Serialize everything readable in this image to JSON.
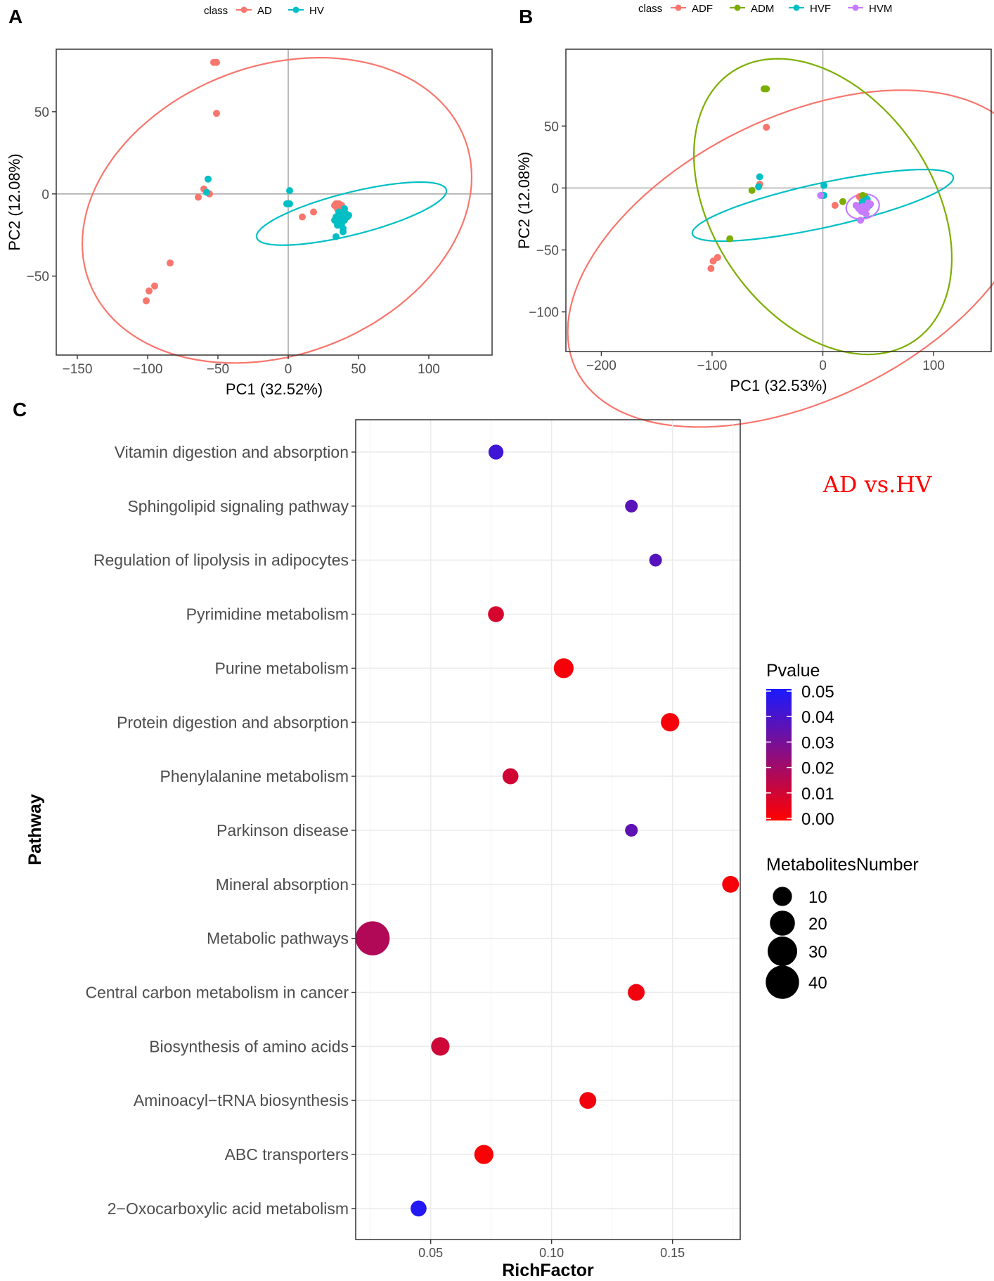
{
  "colors": {
    "AD": "#F8766D",
    "HV": "#00BFC4",
    "ADF": "#F8766D",
    "ADM": "#7CAE00",
    "HVF": "#00BFC4",
    "HVM": "#C77CFF",
    "axis_ref": "#aaaaaa",
    "grid": "#ebebeb",
    "annotation": "#ff0000",
    "p_low": "#ff0000",
    "p_high": "#1a1aff"
  },
  "chart_data": [
    {
      "panel": "A",
      "type": "scatter",
      "legend_title": "class",
      "xlabel": "PC1 (32.52%)",
      "ylabel": "PC2 (12.08%)",
      "xlim": [
        -165,
        145
      ],
      "ylim": [
        -98,
        88
      ],
      "xticks": [
        -150,
        -100,
        -50,
        0,
        50,
        100
      ],
      "yticks": [
        -50,
        0,
        50
      ],
      "xtick_labels": [
        "−150",
        "−100",
        "−50",
        "0",
        "50",
        "100"
      ],
      "ytick_labels": [
        "−50",
        "0",
        "50"
      ],
      "series": [
        {
          "name": "AD",
          "points": [
            [
              -51,
              80
            ],
            [
              -53,
              80
            ],
            [
              -51,
              49
            ],
            [
              -56,
              0
            ],
            [
              -60,
              3
            ],
            [
              -64,
              -2
            ],
            [
              -84,
              -42
            ],
            [
              -95,
              -56
            ],
            [
              -99,
              -59
            ],
            [
              -101,
              -65
            ],
            [
              10,
              -14
            ],
            [
              18,
              -11
            ],
            [
              33,
              -7
            ],
            [
              34,
              -6
            ],
            [
              36,
              -6
            ],
            [
              38,
              -7
            ],
            [
              39,
              -9
            ],
            [
              35,
              -9
            ],
            [
              37,
              -13
            ]
          ]
        },
        {
          "name": "HV",
          "points": [
            [
              -57,
              9
            ],
            [
              -58,
              1
            ],
            [
              -1,
              -6
            ],
            [
              1,
              -6
            ],
            [
              1,
              2
            ],
            [
              33,
              -16
            ],
            [
              34,
              -14
            ],
            [
              35,
              -19
            ],
            [
              36,
              -11
            ],
            [
              37,
              -17
            ],
            [
              38,
              -13
            ],
            [
              39,
              -21
            ],
            [
              40,
              -16
            ],
            [
              41,
              -12
            ],
            [
              42,
              -14
            ],
            [
              36,
              -15
            ],
            [
              38,
              -18
            ],
            [
              34,
              -26
            ],
            [
              40,
              -9
            ],
            [
              43,
              -13
            ],
            [
              39,
              -23
            ]
          ]
        }
      ],
      "ellipses": [
        {
          "class": "AD",
          "cx": -8,
          "cy": -10,
          "rx": 141,
          "ry": 89,
          "angle_deg": 14
        },
        {
          "class": "HV",
          "cx": 45,
          "cy": -12,
          "rx": 69,
          "ry": 13,
          "angle_deg": 12
        }
      ]
    },
    {
      "panel": "B",
      "type": "scatter",
      "legend_title": "class",
      "xlabel": "PC1 (32.53%)",
      "ylabel": "PC2 (12.08%)",
      "xlim": [
        -232,
        152
      ],
      "ylim": [
        -132,
        112
      ],
      "xticks": [
        -200,
        -100,
        0,
        100
      ],
      "yticks": [
        -100,
        -50,
        0,
        50
      ],
      "xtick_labels": [
        "−200",
        "−100",
        "0",
        "100"
      ],
      "ytick_labels": [
        "−100",
        "−50",
        "0",
        "50"
      ],
      "series": [
        {
          "name": "ADF",
          "points": [
            [
              -51,
              49
            ],
            [
              -57,
              3
            ],
            [
              -101,
              -65
            ],
            [
              -99,
              -59
            ],
            [
              -95,
              -56
            ],
            [
              11,
              -14
            ],
            [
              33,
              -7
            ],
            [
              35,
              -9
            ]
          ]
        },
        {
          "name": "ADM",
          "points": [
            [
              -51,
              80
            ],
            [
              -53,
              80
            ],
            [
              -84,
              -41
            ],
            [
              -64,
              -2
            ],
            [
              18,
              -11
            ],
            [
              36,
              -6
            ],
            [
              38,
              -7
            ],
            [
              39,
              -9
            ]
          ]
        },
        {
          "name": "HVF",
          "points": [
            [
              -57,
              9
            ],
            [
              -58,
              1
            ],
            [
              1,
              2
            ],
            [
              1,
              -6
            ],
            [
              -1,
              -6
            ],
            [
              34,
              -14
            ],
            [
              36,
              -11
            ],
            [
              38,
              -13
            ],
            [
              40,
              -9
            ],
            [
              37,
              -17
            ],
            [
              42,
              -14
            ]
          ]
        },
        {
          "name": "HVM",
          "points": [
            [
              -2,
              -6
            ],
            [
              30,
              -14
            ],
            [
              32,
              -16
            ],
            [
              35,
              -19
            ],
            [
              36,
              -15
            ],
            [
              38,
              -18
            ],
            [
              40,
              -16
            ],
            [
              41,
              -12
            ],
            [
              39,
              -21
            ],
            [
              43,
              -13
            ],
            [
              34,
              -26
            ],
            [
              33,
              -17
            ]
          ]
        }
      ],
      "ellipses": [
        {
          "class": "ADF",
          "cx": -20,
          "cy": -57,
          "rx": 222,
          "ry": 116,
          "angle_deg": 22
        },
        {
          "class": "ADM",
          "cx": 0,
          "cy": -15,
          "rx": 137,
          "ry": 95,
          "angle_deg": -47
        },
        {
          "class": "HVF",
          "cx": 0,
          "cy": -14,
          "rx": 120,
          "ry": 18,
          "angle_deg": 11
        },
        {
          "class": "HVM",
          "cx": 36,
          "cy": -15,
          "rx": 15,
          "ry": 10,
          "angle_deg": 8
        }
      ]
    },
    {
      "panel": "C",
      "type": "scatter",
      "title": "AD vs.HV",
      "xlabel": "RichFactor",
      "ylabel": "Pathway",
      "xlim": [
        0.019,
        0.178
      ],
      "xticks": [
        0.05,
        0.1,
        0.15
      ],
      "xtick_labels": [
        "0.05",
        "0.10",
        "0.15"
      ],
      "categories": [
        "Vitamin digestion and absorption",
        "Sphingolipid signaling pathway",
        "Regulation of lipolysis in adipocytes",
        "Pyrimidine metabolism",
        "Purine metabolism",
        "Protein digestion and absorption",
        "Phenylalanine metabolism",
        "Parkinson disease",
        "Mineral absorption",
        "Metabolic pathways",
        "Central carbon metabolism in cancer",
        "Biosynthesis of amino acids",
        "Aminoacyl−tRNA biosynthesis",
        "ABC transporters",
        "2−Oxocarboxylic acid metabolism"
      ],
      "rich_factor": [
        0.077,
        0.133,
        0.143,
        0.077,
        0.105,
        0.149,
        0.083,
        0.133,
        0.174,
        0.026,
        0.135,
        0.054,
        0.115,
        0.072,
        0.045
      ],
      "pvalue": [
        0.042,
        0.036,
        0.037,
        0.009,
        0.002,
        0.002,
        0.01,
        0.035,
        0.002,
        0.017,
        0.003,
        0.011,
        0.003,
        0.001,
        0.048
      ],
      "metabolites_number": [
        5,
        3,
        3,
        6,
        11,
        9,
        6,
        3,
        7,
        42,
        7,
        9,
        7,
        10,
        6
      ],
      "color_legend": {
        "title": "Pvalue",
        "range": [
          0.0,
          0.05
        ],
        "labels": [
          "0.05",
          "0.04",
          "0.03",
          "0.02",
          "0.01",
          "0.00"
        ]
      },
      "size_legend": {
        "title": "MetabolitesNumber",
        "values": [
          10,
          20,
          30,
          40
        ],
        "labels": [
          "10",
          "20",
          "30",
          "40"
        ]
      }
    }
  ],
  "panel_labels": [
    "A",
    "B",
    "C"
  ]
}
